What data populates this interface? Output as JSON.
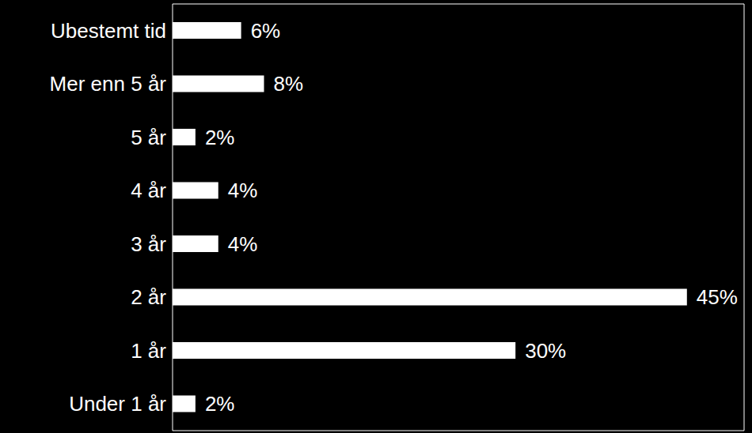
{
  "chart_data": {
    "type": "bar",
    "orientation": "horizontal",
    "categories": [
      "Ubestemt tid",
      "Mer enn 5 år",
      "5 år",
      "4 år",
      "3 år",
      "2 år",
      "1 år",
      "Under 1 år"
    ],
    "values": [
      6,
      8,
      2,
      4,
      4,
      45,
      30,
      2
    ],
    "value_labels": [
      "6%",
      "8%",
      "2%",
      "4%",
      "4%",
      "45%",
      "30%",
      "2%"
    ],
    "data_labels": true,
    "color": "#ffffff",
    "xlim": [
      0,
      50
    ],
    "tick_labels": "y"
  }
}
